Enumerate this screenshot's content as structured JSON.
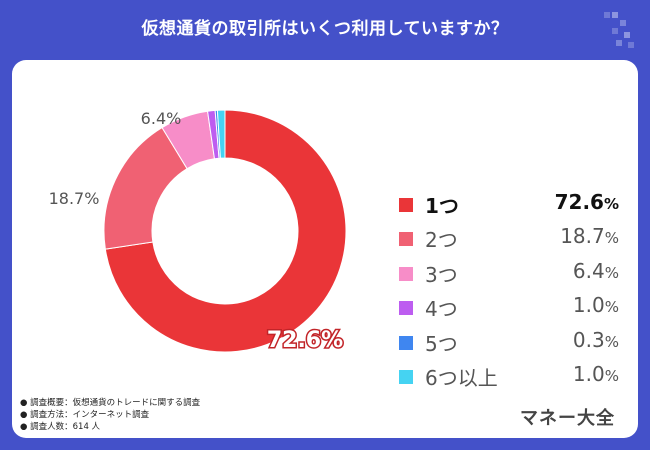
{
  "title": "仮想通貨の取引所はいくつ利用していますか？",
  "chart_data": {
    "type": "pie",
    "title": "仮想通貨の取引所はいくつ利用していますか？",
    "categories": [
      "1つ",
      "2つ",
      "3つ",
      "4つ",
      "5つ",
      "6つ以上"
    ],
    "values": [
      72.6,
      18.7,
      6.4,
      1.0,
      0.3,
      1.0
    ],
    "value_labels": [
      "72.6",
      "18.7",
      "6.4",
      "1.0",
      "0.3",
      "1.0"
    ],
    "colors": [
      "#ea3538",
      "#f06173",
      "#f78dc8",
      "#bd5df0",
      "#3f86f0",
      "#45d3f2"
    ],
    "unit": "%",
    "donut": true,
    "legend_position": "right"
  },
  "slice_labels": {
    "s1": "72.6%",
    "s2": "18.7%",
    "s3": "6.4%"
  },
  "notes": [
    "調査概要：仮想通貨のトレードに関する調査",
    "調査方法：インターネット調査",
    "調査人数：614 人"
  ],
  "brand": "マネー大全",
  "corner_logo_icon": "pixel-squares-logo-icon"
}
